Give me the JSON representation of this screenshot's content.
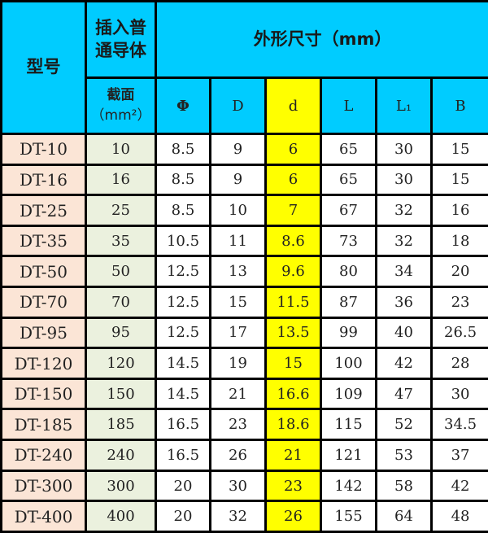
{
  "header": {
    "model": "型号",
    "conductor_line1": "插入普",
    "conductor_line2": "通导体",
    "dimensions": "外形尺寸（mm）",
    "section_line1": "截面",
    "section_line2": "（mm²）",
    "cols": [
      "Φ",
      "D",
      "d",
      "L",
      "L₁",
      "B"
    ]
  },
  "colors": {
    "header": "#00ccff",
    "model_col": "#fbe5d6",
    "section_col": "#ebf1de",
    "highlight_d": "#ffff00"
  },
  "rows": [
    [
      "DT-10",
      "10",
      "8.5",
      "9",
      "6",
      "65",
      "30",
      "15"
    ],
    [
      "DT-16",
      "16",
      "8.5",
      "9",
      "6",
      "65",
      "30",
      "15"
    ],
    [
      "DT-25",
      "25",
      "8.5",
      "10",
      "7",
      "67",
      "32",
      "16"
    ],
    [
      "DT-35",
      "35",
      "10.5",
      "11",
      "8.6",
      "73",
      "32",
      "18"
    ],
    [
      "DT-50",
      "50",
      "12.5",
      "13",
      "9.6",
      "80",
      "34",
      "20"
    ],
    [
      "DT-70",
      "70",
      "12.5",
      "15",
      "11.5",
      "87",
      "36",
      "23"
    ],
    [
      "DT-95",
      "95",
      "12.5",
      "17",
      "13.5",
      "99",
      "40",
      "26.5"
    ],
    [
      "DT-120",
      "120",
      "14.5",
      "19",
      "15",
      "100",
      "42",
      "28"
    ],
    [
      "DT-150",
      "150",
      "14.5",
      "21",
      "16.6",
      "109",
      "47",
      "30"
    ],
    [
      "DT-185",
      "185",
      "16.5",
      "23",
      "18.6",
      "115",
      "52",
      "34.5"
    ],
    [
      "DT-240",
      "240",
      "16.5",
      "26",
      "21",
      "121",
      "53",
      "37"
    ],
    [
      "DT-300",
      "300",
      "20",
      "30",
      "23",
      "142",
      "58",
      "42"
    ],
    [
      "DT-400",
      "400",
      "20",
      "32",
      "26",
      "155",
      "64",
      "48"
    ]
  ]
}
